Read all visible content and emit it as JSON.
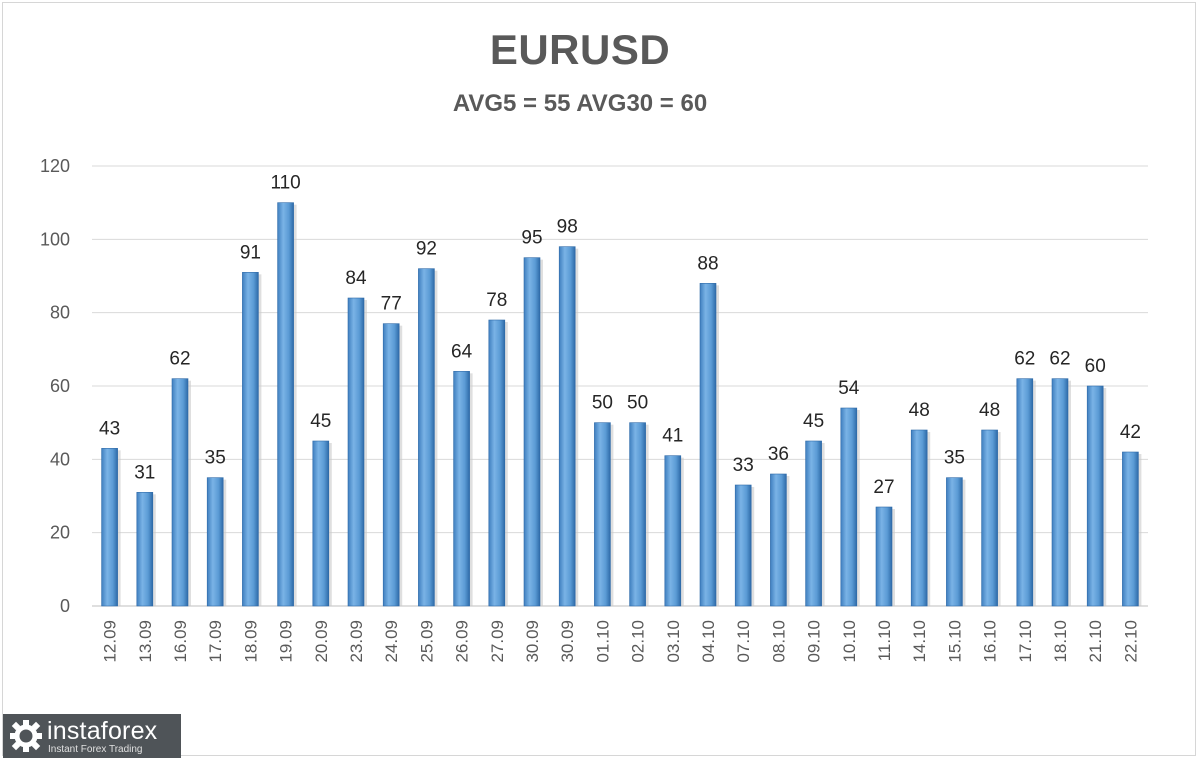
{
  "chart_data": {
    "type": "bar",
    "title": "EURUSD",
    "subtitle": "AVG5 = 55 AVG30 = 60",
    "xlabel": "",
    "ylabel": "",
    "ylim": [
      0,
      120
    ],
    "yticks": [
      0,
      20,
      40,
      60,
      80,
      100,
      120
    ],
    "grid": true,
    "legend": "none",
    "bar_color": "#5b9bd5",
    "categories": [
      "12.09",
      "13.09",
      "16.09",
      "17.09",
      "18.09",
      "19.09",
      "20.09",
      "23.09",
      "24.09",
      "25.09",
      "26.09",
      "27.09",
      "30.09",
      "30.09",
      "01.10",
      "02.10",
      "03.10",
      "04.10",
      "07.10",
      "08.10",
      "09.10",
      "10.10",
      "11.10",
      "14.10",
      "15.10",
      "16.10",
      "17.10",
      "18.10",
      "21.10",
      "22.10"
    ],
    "values": [
      43,
      31,
      62,
      35,
      91,
      110,
      45,
      84,
      77,
      92,
      64,
      78,
      95,
      98,
      50,
      50,
      41,
      88,
      33,
      36,
      45,
      54,
      27,
      48,
      35,
      48,
      62,
      62,
      60,
      42
    ]
  },
  "watermark": {
    "name": "instaforex",
    "tagline": "Instant Forex Trading",
    "icon": "gear-logo-icon"
  }
}
